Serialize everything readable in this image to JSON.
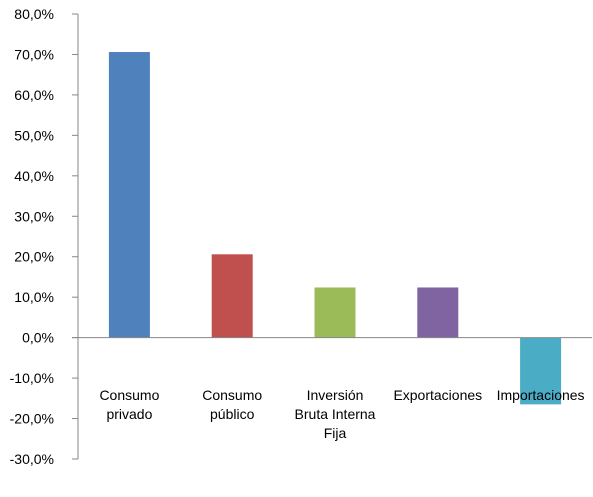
{
  "chart_data": {
    "type": "bar",
    "title": "",
    "xlabel": "",
    "ylabel": "",
    "ylim": [
      -30,
      80
    ],
    "y_ticks": [
      80,
      70,
      60,
      50,
      40,
      30,
      20,
      10,
      0,
      -10,
      -20,
      -30
    ],
    "y_tick_labels": [
      "80,0%",
      "70,0%",
      "60,0%",
      "50,0%",
      "40,0%",
      "30,0%",
      "20,0%",
      "10,0%",
      "0,0%",
      "-10,0%",
      "-20,0%",
      "-30,0%"
    ],
    "grid": false,
    "legend": "none",
    "categories": [
      [
        "Consumo",
        "privado"
      ],
      [
        "Consumo",
        "público"
      ],
      [
        "Inversión",
        "Bruta Interna",
        "Fija"
      ],
      [
        "Exportaciones"
      ],
      [
        "Importaciones"
      ]
    ],
    "values": [
      70.6,
      20.6,
      12.4,
      12.4,
      -16.5
    ],
    "colors": [
      "#4f81bd",
      "#c0504d",
      "#9bbb59",
      "#8064a2",
      "#4bacc6"
    ],
    "unit": "%"
  }
}
